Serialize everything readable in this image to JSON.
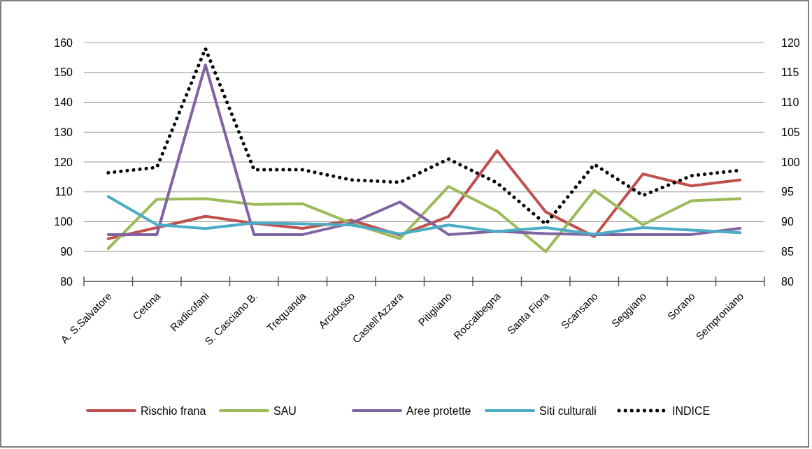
{
  "chart_data": {
    "type": "line",
    "categories": [
      "A. S.Salvatore",
      "Cetona",
      "Radicofani",
      "S. Casciano B.",
      "Trequanda",
      "Arcidosso",
      "Castell'Azzara",
      "Pitigliano",
      "Roccalbegna",
      "Santa Fiora",
      "Scansano",
      "Seggiano",
      "Sorano",
      "Semproniano"
    ],
    "series": [
      {
        "name": "Rischio frana",
        "color": "#c0504d",
        "values": [
          94.3,
          98,
          101.8,
          99.5,
          97.8,
          100.5,
          95.5,
          101.7,
          123.8,
          103.3,
          95,
          116,
          112,
          114
        ]
      },
      {
        "name": "SAU",
        "color": "#9bbb59",
        "values": [
          91,
          107.5,
          107.7,
          105.8,
          106,
          99.5,
          94.3,
          111.8,
          103.5,
          90,
          110.5,
          99,
          107,
          107.7
        ]
      },
      {
        "name": "Aree protette",
        "color": "#8064a2",
        "values": [
          95.7,
          95.7,
          152.5,
          95.7,
          95.7,
          99.5,
          106.6,
          95.7,
          96.8,
          96,
          95.7,
          95.7,
          95.7,
          97.8
        ]
      },
      {
        "name": "Siti culturali",
        "color": "#4bacc6",
        "values": [
          108.4,
          99,
          97.7,
          99.6,
          99.3,
          98.9,
          95.9,
          98.9,
          96.7,
          98,
          95.8,
          98,
          97.2,
          96.3
        ]
      },
      {
        "name": "INDICE",
        "color": "#000000",
        "axis": "y2",
        "line_style": "dotted",
        "values": [
          98.2,
          99.1,
          119,
          98.7,
          98.7,
          97,
          96.6,
          100.5,
          96.5,
          89.6,
          99.6,
          94.4,
          97.7,
          98.6
        ]
      }
    ],
    "ylim": [
      80,
      160
    ],
    "yticks": [
      80,
      90,
      100,
      110,
      120,
      130,
      140,
      150,
      160
    ],
    "y2lim": [
      80,
      120
    ],
    "y2ticks": [
      80,
      85,
      90,
      95,
      100,
      105,
      110,
      115,
      120
    ],
    "grid": "y",
    "legend": "bottom",
    "line_style": "solid"
  }
}
